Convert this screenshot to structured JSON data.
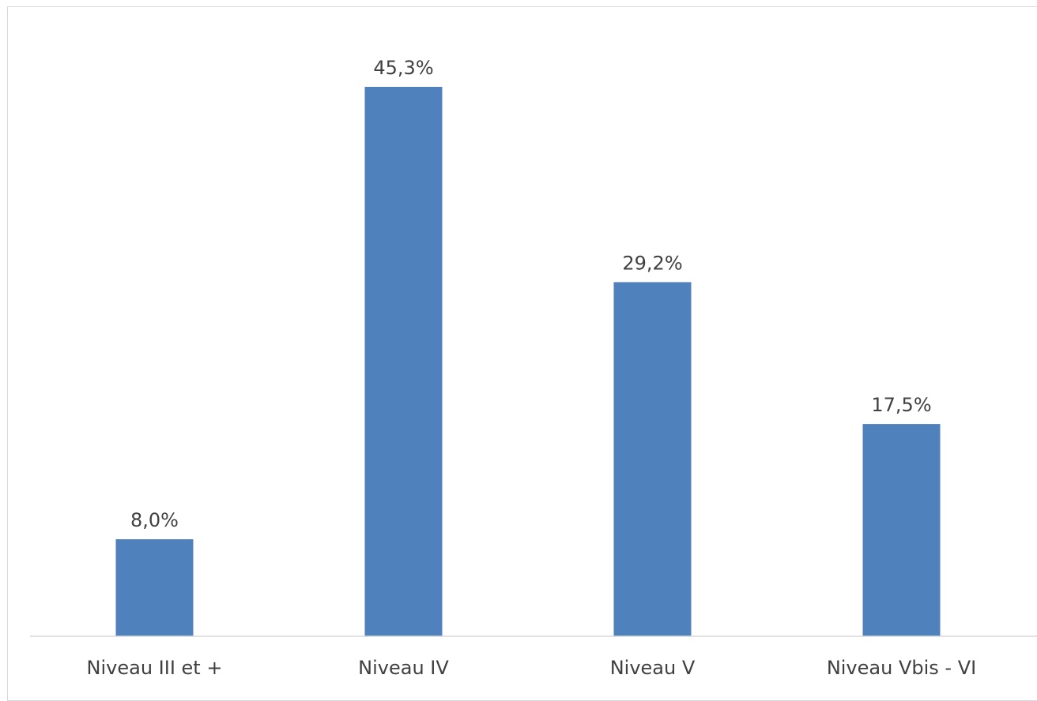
{
  "chart_data": {
    "type": "bar",
    "categories": [
      "Niveau III et +",
      "Niveau IV",
      "Niveau V",
      "Niveau Vbis - VI"
    ],
    "values": [
      8.0,
      45.3,
      29.2,
      17.5
    ],
    "data_labels": [
      "8,0%",
      "45,3%",
      "29,2%",
      "17,5%"
    ],
    "title": "",
    "xlabel": "",
    "ylabel": "",
    "ylim": [
      0,
      45.3
    ],
    "grid": false,
    "legend": "none",
    "bar_color": "#4f81bd",
    "axis_color": "#d9d9d9",
    "text_color": "#404040"
  }
}
